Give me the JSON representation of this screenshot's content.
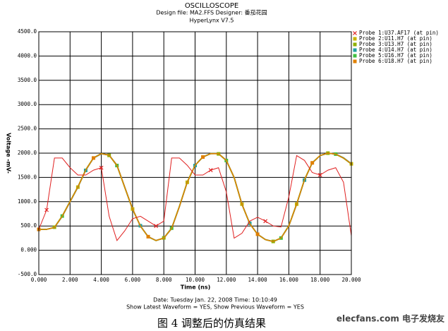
{
  "chart_data": {
    "type": "line",
    "title": "OSCILLOSCOPE",
    "subtitle": "Design file: MA2.FFS   Designer: 番茄花园",
    "software": "HyperLynx V7.5",
    "y_label": "Voltage -mV-",
    "x_label": "Time (ns)",
    "footer_date": "Date: Tuesday Jan. 22, 2008   Time: 10:10:49",
    "footer_waveform": "Show Latest Waveform = YES,  Show Previous Waveform = YES",
    "caption": "图 4   调整后的仿真结果",
    "watermark": "elecfans.com 电子发烧友",
    "grid": true,
    "xlim": [
      0,
      20
    ],
    "ylim": [
      -500,
      4500
    ],
    "xticks": [
      {
        "value": 0,
        "label": "0.000"
      },
      {
        "value": 2,
        "label": "2.000"
      },
      {
        "value": 4,
        "label": "4.000"
      },
      {
        "value": 6,
        "label": "6.000"
      },
      {
        "value": 8,
        "label": "8.000"
      },
      {
        "value": 10,
        "label": "10.000"
      },
      {
        "value": 12,
        "label": "12.000"
      },
      {
        "value": 14,
        "label": "14.000"
      },
      {
        "value": 16,
        "label": "16.000"
      },
      {
        "value": 18,
        "label": "18.000"
      },
      {
        "value": 20,
        "label": "20.000"
      }
    ],
    "yticks": [
      {
        "value": 4500,
        "label": "4500.0"
      },
      {
        "value": 4000,
        "label": "4000.0"
      },
      {
        "value": 3500,
        "label": "3500.0"
      },
      {
        "value": 3000,
        "label": "3000.0"
      },
      {
        "value": 2500,
        "label": "2500.0"
      },
      {
        "value": 2000,
        "label": "2000.0"
      },
      {
        "value": 1500,
        "label": "1500.0"
      },
      {
        "value": 1000,
        "label": "1000.0"
      },
      {
        "value": 500,
        "label": "500.0"
      },
      {
        "value": 0,
        "label": "0.000"
      },
      {
        "value": -500,
        "label": "-500.0"
      }
    ],
    "x": [
      0,
      0.5,
      1,
      1.5,
      2,
      2.5,
      3,
      3.5,
      4,
      4.5,
      5,
      5.5,
      6,
      6.5,
      7,
      7.5,
      8,
      8.5,
      9,
      9.5,
      10,
      10.5,
      11,
      11.5,
      12,
      12.5,
      13,
      13.5,
      14,
      14.5,
      15,
      15.5,
      16,
      16.5,
      17,
      17.5,
      18,
      18.5,
      19,
      19.5,
      20
    ],
    "series": [
      {
        "name": "Probe 1:U37.AF17 (at pin)",
        "color": "#e02020",
        "values": [
          430,
          830,
          1900,
          1900,
          1700,
          1550,
          1550,
          1650,
          1700,
          700,
          200,
          400,
          650,
          700,
          600,
          500,
          600,
          1900,
          1900,
          1750,
          1550,
          1550,
          1650,
          1700,
          1200,
          250,
          350,
          600,
          680,
          600,
          500,
          480,
          1100,
          1950,
          1850,
          1600,
          1550,
          1650,
          1700,
          1400,
          300
        ]
      },
      {
        "name": "Probe 2:U11.H7 (at pin)",
        "color": "#c8b400",
        "values": [
          430,
          430,
          470,
          700,
          1000,
          1300,
          1650,
          1900,
          1990,
          1960,
          1750,
          1300,
          850,
          500,
          280,
          200,
          250,
          450,
          900,
          1400,
          1750,
          1920,
          1990,
          1990,
          1850,
          1500,
          950,
          550,
          330,
          220,
          180,
          250,
          500,
          950,
          1450,
          1800,
          1950,
          2000,
          1980,
          1900,
          1780
        ]
      },
      {
        "name": "Probe 3:U13.H7 (at pin)",
        "color": "#90b000",
        "values": [
          430,
          430,
          475,
          710,
          1010,
          1310,
          1660,
          1905,
          1990,
          1955,
          1740,
          1290,
          840,
          495,
          275,
          200,
          255,
          460,
          910,
          1410,
          1755,
          1925,
          1990,
          1985,
          1845,
          1490,
          940,
          545,
          325,
          220,
          182,
          255,
          510,
          960,
          1460,
          1805,
          1952,
          2000,
          1978,
          1895,
          1775
        ]
      },
      {
        "name": "Probe 4:U14.H7 (at pin)",
        "color": "#20a0a0",
        "values": [
          430,
          430,
          468,
          695,
          995,
          1295,
          1645,
          1895,
          1985,
          1962,
          1755,
          1305,
          855,
          505,
          282,
          202,
          248,
          445,
          895,
          1395,
          1745,
          1918,
          1988,
          1992,
          1855,
          1505,
          955,
          555,
          332,
          222,
          180,
          248,
          495,
          945,
          1445,
          1795,
          1948,
          1998,
          1982,
          1905,
          1785
        ]
      },
      {
        "name": "Probe 5:U16.H7 (at pin)",
        "color": "#40c040",
        "values": [
          430,
          430,
          472,
          705,
          1005,
          1305,
          1655,
          1902,
          1992,
          1958,
          1745,
          1295,
          845,
          498,
          278,
          198,
          252,
          455,
          905,
          1405,
          1752,
          1922,
          1992,
          1988,
          1848,
          1495,
          945,
          548,
          328,
          218,
          178,
          252,
          505,
          955,
          1455,
          1802,
          1950,
          2002,
          1980,
          1898,
          1778
        ]
      },
      {
        "name": "Probe 6:U18.H7 (at pin)",
        "color": "#e08000",
        "values": [
          430,
          430,
          470,
          702,
          1002,
          1302,
          1652,
          1900,
          1990,
          1960,
          1750,
          1300,
          850,
          500,
          280,
          200,
          250,
          450,
          900,
          1400,
          1750,
          1920,
          1990,
          1990,
          1850,
          1500,
          950,
          550,
          330,
          220,
          180,
          250,
          500,
          950,
          1450,
          1800,
          1950,
          2000,
          1980,
          1900,
          1780
        ]
      }
    ]
  }
}
